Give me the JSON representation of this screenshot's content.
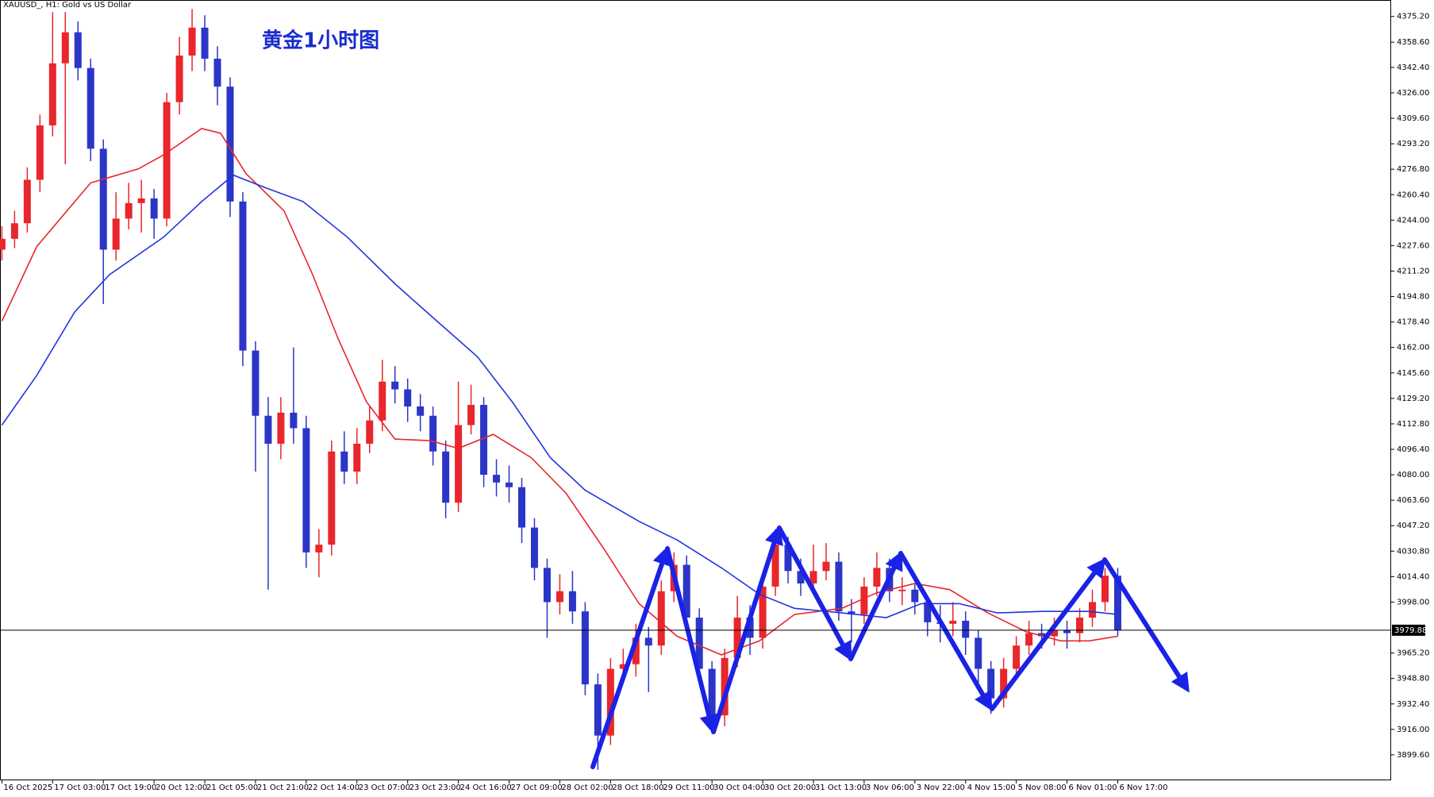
{
  "chart_data": {
    "type": "candlestick",
    "header": "XAUUSD_, H1:  Gold vs US Dollar",
    "title": "黄金1小时图",
    "up_color": "#e8262b",
    "down_color": "#2b35c8",
    "xlim": [
      -0.6,
      438
    ],
    "ylim": [
      3883.7,
      4385.8
    ],
    "x": [
      0,
      4,
      8,
      12,
      16,
      20,
      24,
      28,
      32,
      36,
      40,
      44,
      48,
      52,
      56,
      60,
      64,
      68,
      72,
      76,
      80,
      84,
      88,
      92,
      96,
      100,
      104,
      108,
      112,
      116,
      120,
      124,
      128,
      132,
      136,
      140,
      144,
      148,
      152,
      156,
      160,
      164,
      168,
      172,
      176,
      180,
      184,
      188,
      192,
      196,
      200,
      204,
      208,
      212,
      216,
      220,
      224,
      228,
      232,
      236,
      240,
      244,
      248,
      252,
      256,
      260,
      264,
      268,
      272,
      276,
      280,
      284,
      288,
      292,
      296,
      300,
      304,
      308,
      312,
      316,
      320,
      324,
      328,
      332,
      336,
      340,
      344,
      348,
      352
    ],
    "open": [
      4225,
      4232,
      4242,
      4270,
      4305,
      4345,
      4365,
      4342,
      4290,
      4225,
      4245,
      4255,
      4258,
      4245,
      4320,
      4350,
      4368,
      4348,
      4330,
      4256,
      4160,
      4118,
      4100,
      4120,
      4110,
      4030,
      4035,
      4095,
      4082,
      4100,
      4115,
      4140,
      4135,
      4124,
      4118,
      4095,
      4062,
      4112,
      4125,
      4080,
      4075,
      4072,
      4046,
      4020,
      3998,
      4005,
      3992,
      3945,
      3912,
      3955,
      3958,
      3975,
      3970,
      4005,
      4022,
      3988,
      3955,
      3925,
      3962,
      3988,
      3975,
      4008,
      4035,
      4018,
      4010,
      4018,
      4024,
      3992,
      3990,
      4008,
      4020,
      4005,
      4006,
      3998,
      3985,
      3984,
      3986,
      3975,
      3955,
      3936,
      3955,
      3970,
      3978,
      3976,
      3980,
      3978,
      3988,
      3998,
      4015
    ],
    "high": [
      4240,
      4250,
      4278,
      4312,
      4378,
      4378,
      4372,
      4348,
      4296,
      4262,
      4268,
      4270,
      4264,
      4326,
      4362,
      4380,
      4376,
      4356,
      4336,
      4262,
      4166,
      4130,
      4130,
      4162,
      4118,
      4045,
      4102,
      4108,
      4110,
      4124,
      4154,
      4150,
      4142,
      4132,
      4124,
      4102,
      4140,
      4138,
      4130,
      4090,
      4086,
      4078,
      4052,
      4026,
      4016,
      4018,
      3998,
      3952,
      3962,
      3968,
      3984,
      3982,
      4012,
      4030,
      4028,
      3994,
      3960,
      3968,
      4002,
      3996,
      4014,
      4045,
      4040,
      4026,
      4035,
      4036,
      4030,
      4000,
      4014,
      4030,
      4026,
      4014,
      4010,
      4002,
      3996,
      3998,
      3992,
      3980,
      3960,
      3962,
      3976,
      3986,
      3984,
      3988,
      3986,
      3994,
      4006,
      4020,
      4020
    ],
    "low": [
      4218,
      4226,
      4236,
      4262,
      4298,
      4280,
      4334,
      4282,
      4190,
      4218,
      4238,
      4236,
      4232,
      4240,
      4312,
      4340,
      4340,
      4318,
      4246,
      4150,
      4082,
      4006,
      4090,
      4100,
      4020,
      4014,
      4028,
      4074,
      4074,
      4094,
      4108,
      4126,
      4114,
      4108,
      4086,
      4052,
      4056,
      4106,
      4072,
      4066,
      4062,
      4036,
      4012,
      3975,
      3990,
      3984,
      3938,
      3890,
      3906,
      3946,
      3950,
      3940,
      3964,
      3998,
      3980,
      3946,
      3916,
      3918,
      3956,
      3964,
      3968,
      4002,
      4010,
      4002,
      4004,
      4012,
      3986,
      3972,
      3984,
      4002,
      3998,
      3996,
      3990,
      3976,
      3972,
      3976,
      3964,
      3946,
      3926,
      3930,
      3948,
      3964,
      3968,
      3970,
      3968,
      3972,
      3982,
      3992,
      3976
    ],
    "close": [
      4232,
      4242,
      4270,
      4305,
      4345,
      4365,
      4342,
      4290,
      4225,
      4245,
      4255,
      4258,
      4245,
      4320,
      4350,
      4368,
      4348,
      4330,
      4256,
      4160,
      4118,
      4100,
      4120,
      4110,
      4030,
      4035,
      4095,
      4082,
      4100,
      4115,
      4140,
      4135,
      4124,
      4118,
      4095,
      4062,
      4112,
      4125,
      4080,
      4075,
      4072,
      4046,
      4020,
      3998,
      4005,
      3992,
      3945,
      3912,
      3955,
      3958,
      3975,
      3970,
      4005,
      4022,
      3988,
      3955,
      3925,
      3962,
      3988,
      3975,
      4008,
      4035,
      4018,
      4010,
      4018,
      4024,
      3992,
      3990,
      4008,
      4020,
      4005,
      4006,
      3998,
      3985,
      3984,
      3986,
      3975,
      3955,
      3936,
      3955,
      3970,
      3978,
      3976,
      3980,
      3978,
      3988,
      3998,
      4015,
      3980
    ],
    "moving_averages": [
      {
        "color": "#e8262b",
        "x": [
          0,
          11,
          28,
          43,
          51,
          63,
          69,
          77,
          89,
          98,
          106,
          115,
          124,
          135,
          144,
          155,
          167,
          178,
          190,
          201,
          213,
          227,
          239,
          250,
          265,
          276,
          288,
          299,
          311,
          323,
          334,
          343,
          352
        ],
        "values": [
          4179,
          4227,
          4268,
          4277,
          4286,
          4303,
          4300,
          4274,
          4250,
          4209,
          4168,
          4127,
          4103,
          4102,
          4097,
          4106,
          4091,
          4068,
          4032,
          3997,
          3976,
          3964,
          3973,
          3990,
          3994,
          4004,
          4010,
          4006,
          3991,
          3979,
          3973,
          3973,
          3976
        ]
      },
      {
        "color": "#2233dd",
        "x": [
          0,
          11,
          23,
          34,
          51,
          63,
          73,
          83,
          95,
          109,
          124,
          135,
          150,
          161,
          173,
          184,
          201,
          213,
          227,
          239,
          250,
          265,
          279,
          290,
          302,
          314,
          328,
          343,
          352
        ],
        "values": [
          4112,
          4144,
          4185,
          4209,
          4233,
          4256,
          4273,
          4265,
          4256,
          4233,
          4203,
          4183,
          4156,
          4127,
          4091,
          4070,
          4050,
          4038,
          4020,
          4003,
          3994,
          3991,
          3988,
          3997,
          3997,
          3991,
          3992,
          3992,
          3990
        ]
      }
    ],
    "current_price": 3979.88,
    "yticks": [
      {
        "value": 4375.2,
        "label": "4375.20"
      },
      {
        "value": 4358.6,
        "label": "4358.60"
      },
      {
        "value": 4342.4,
        "label": "4342.40"
      },
      {
        "value": 4326,
        "label": "4326.00"
      },
      {
        "value": 4309.6,
        "label": "4309.60"
      },
      {
        "value": 4293.2,
        "label": "4293.20"
      },
      {
        "value": 4276.8,
        "label": "4276.80"
      },
      {
        "value": 4260.4,
        "label": "4260.40"
      },
      {
        "value": 4244,
        "label": "4244.00"
      },
      {
        "value": 4227.6,
        "label": "4227.60"
      },
      {
        "value": 4211.2,
        "label": "4211.20"
      },
      {
        "value": 4194.8,
        "label": "4194.80"
      },
      {
        "value": 4178.4,
        "label": "4178.40"
      },
      {
        "value": 4162,
        "label": "4162.00"
      },
      {
        "value": 4145.6,
        "label": "4145.60"
      },
      {
        "value": 4129.2,
        "label": "4129.20"
      },
      {
        "value": 4112.8,
        "label": "4112.80"
      },
      {
        "value": 4096.4,
        "label": "4096.40"
      },
      {
        "value": 4080,
        "label": "4080.00"
      },
      {
        "value": 4063.6,
        "label": "4063.60"
      },
      {
        "value": 4047.2,
        "label": "4047.20"
      },
      {
        "value": 4030.8,
        "label": "4030.80"
      },
      {
        "value": 4014.4,
        "label": "4014.40"
      },
      {
        "value": 3998,
        "label": "3998.00"
      },
      {
        "value": 3965.2,
        "label": "3965.20"
      },
      {
        "value": 3948.8,
        "label": "3948.80"
      },
      {
        "value": 3932.4,
        "label": "3932.40"
      },
      {
        "value": 3916,
        "label": "3916.00"
      },
      {
        "value": 3899.6,
        "label": "3899.60"
      }
    ],
    "xticks": [
      {
        "value": 0,
        "label": "16 Oct 2025"
      },
      {
        "value": 16,
        "label": "17 Oct 03:00"
      },
      {
        "value": 32,
        "label": "17 Oct 19:00"
      },
      {
        "value": 48,
        "label": "20 Oct 12:00"
      },
      {
        "value": 64,
        "label": "21 Oct 05:00"
      },
      {
        "value": 80,
        "label": "21 Oct 21:00"
      },
      {
        "value": 96,
        "label": "22 Oct 14:00"
      },
      {
        "value": 112,
        "label": "23 Oct 07:00"
      },
      {
        "value": 128,
        "label": "23 Oct 23:00"
      },
      {
        "value": 144,
        "label": "24 Oct 16:00"
      },
      {
        "value": 160,
        "label": "27 Oct 09:00"
      },
      {
        "value": 176,
        "label": "28 Oct 02:00"
      },
      {
        "value": 192,
        "label": "28 Oct 18:00"
      },
      {
        "value": 208,
        "label": "29 Oct 11:00"
      },
      {
        "value": 224,
        "label": "30 Oct 04:00"
      },
      {
        "value": 240,
        "label": "30 Oct 20:00"
      },
      {
        "value": 256,
        "label": "31 Oct 13:00"
      },
      {
        "value": 272,
        "label": "3 Nov 06:00"
      },
      {
        "value": 288,
        "label": "3 Nov 22:00"
      },
      {
        "value": 304,
        "label": "4 Nov 15:00"
      },
      {
        "value": 320,
        "label": "5 Nov 08:00"
      },
      {
        "value": 336,
        "label": "6 Nov 01:00"
      },
      {
        "value": 352,
        "label": "6 Nov 17:00"
      }
    ]
  }
}
